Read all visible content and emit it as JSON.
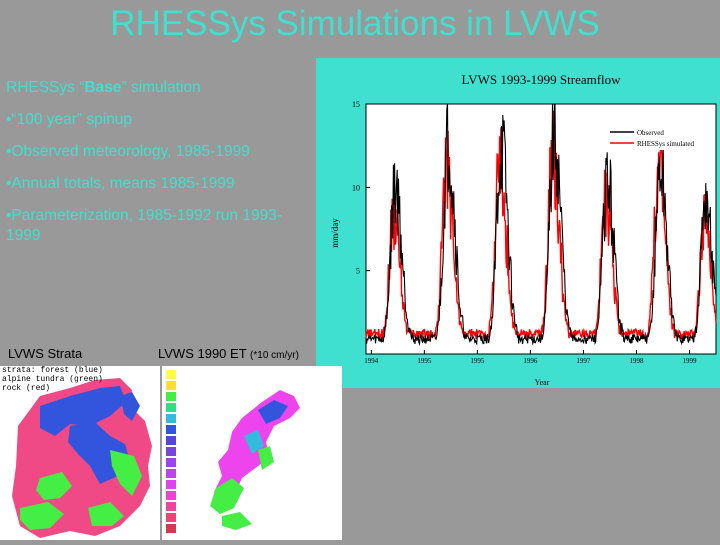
{
  "slide": {
    "title": "RHESSys Simulations in LVWS",
    "bullet1_pre": "RHESSys “",
    "bullet1_bold": "Base",
    "bullet1_post": "” simulation",
    "bullet2": "•“100 year” spinup",
    "bullet3": "•Observed meteorology, 1985-1999",
    "bullet4": "•Annual totals, means 1985-1999",
    "bullet5": "•Parameterization, 1985-1992 run 1993-1999",
    "caption_strata": "LVWS Strata",
    "caption_et": "LVWS 1990 ET",
    "caption_et_unit": "(*10 cm/yr)",
    "strata_legend": [
      "strata: forest (blue)",
      "alpine tundra (green)",
      "rock (red)"
    ]
  },
  "chart_data": {
    "type": "line",
    "title": "LVWS 1993-1999 Streamflow",
    "xlabel": "Year",
    "ylabel": "mm/day",
    "ylim": [
      0,
      15
    ],
    "xlim": [
      1993.9,
      2000.5
    ],
    "yticks": [
      5,
      10,
      15
    ],
    "xticks": [
      "1994",
      "1995",
      "1995",
      "1996",
      "1997",
      "1998",
      "1999"
    ],
    "legend_position": "top-right",
    "series": [
      {
        "name": "Observed",
        "color": "#000000",
        "peaks": [
          {
            "x": 1994.45,
            "y": 11.5
          },
          {
            "x": 1995.45,
            "y": 14.5
          },
          {
            "x": 1996.45,
            "y": 14.2
          },
          {
            "x": 1997.45,
            "y": 15.0
          },
          {
            "x": 1998.45,
            "y": 11.8
          },
          {
            "x": 1999.45,
            "y": 12.5
          },
          {
            "x": 2000.3,
            "y": 10.5
          }
        ],
        "baseflow": 0.6
      },
      {
        "name": "RHESSys simulated",
        "color": "#ff0000",
        "peaks": [
          {
            "x": 1994.42,
            "y": 9.5
          },
          {
            "x": 1995.42,
            "y": 12.5
          },
          {
            "x": 1996.42,
            "y": 13.0
          },
          {
            "x": 1997.42,
            "y": 13.5
          },
          {
            "x": 1998.42,
            "y": 10.5
          },
          {
            "x": 1999.42,
            "y": 12.8
          },
          {
            "x": 2000.28,
            "y": 9.0
          }
        ],
        "baseflow": 0.9
      }
    ]
  },
  "colors": {
    "background": "#999999",
    "text": "#40e0d0",
    "chart_bg": "#40e0d0"
  }
}
